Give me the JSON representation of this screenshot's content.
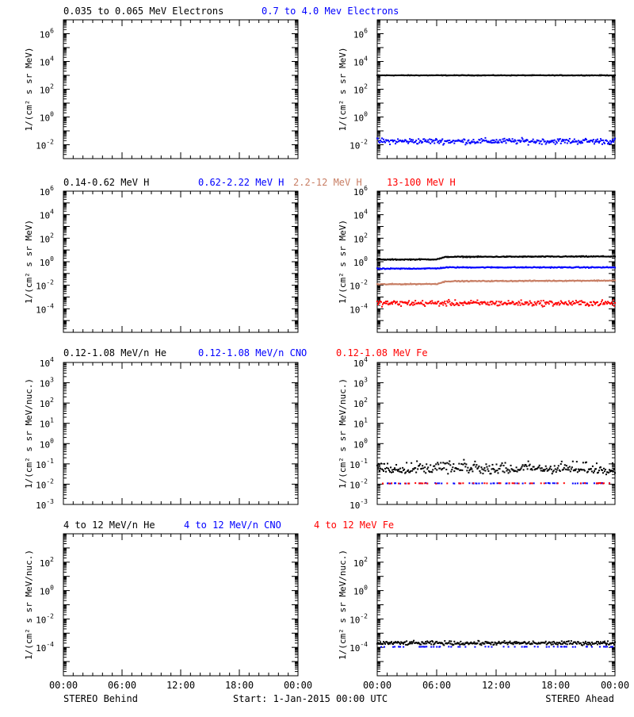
{
  "colors": {
    "black": "#000000",
    "blue": "#0000ff",
    "tan": "#c87e64",
    "red": "#ff0000"
  },
  "footer": {
    "left_label": "STEREO Behind",
    "center_label": "Start:  1-Jan-2015 00:00 UTC",
    "right_label": "STEREO Ahead"
  },
  "chart_data": [
    {
      "type": "scatter",
      "legend": [
        "0.035 to 0.065 MeV Electrons",
        "0.7 to 4.0 Mev Electrons"
      ],
      "ylabel": "1/(cm² s sr MeV)",
      "y_scale": "log",
      "y_tick_exponents": [
        -2,
        0,
        2,
        4,
        6
      ],
      "ylim": [
        0.001,
        10000000
      ],
      "x_ticks": [
        "00:00",
        "06:00",
        "12:00",
        "18:00",
        "00:00"
      ],
      "x_range_hours": [
        0,
        24
      ],
      "behind_series": [],
      "ahead_series": [
        {
          "name": "0.035 to 0.065 MeV Electrons",
          "color": "black",
          "x_hours": [
            0,
            6,
            12,
            18,
            24
          ],
          "values": [
            1000,
            1000,
            1000,
            1000,
            1000
          ],
          "scatter_decades": 0.03
        },
        {
          "name": "0.7 to 4.0 Mev Electrons",
          "color": "blue",
          "x_hours": [
            0,
            6,
            12,
            18,
            24
          ],
          "values": [
            0.018,
            0.018,
            0.018,
            0.018,
            0.018
          ],
          "scatter_decades": 0.3
        }
      ]
    },
    {
      "type": "scatter",
      "legend": [
        "0.14-0.62 MeV H",
        "0.62-2.22 MeV H",
        "2.2-12 MeV H",
        "13-100 MeV H"
      ],
      "ylabel": "1/(cm² s sr MeV)",
      "y_scale": "log",
      "y_tick_exponents": [
        -4,
        -2,
        0,
        2,
        4,
        6
      ],
      "ylim": [
        1e-06,
        1000000
      ],
      "x_ticks": [
        "00:00",
        "06:00",
        "12:00",
        "18:00",
        "00:00"
      ],
      "x_range_hours": [
        0,
        24
      ],
      "behind_series": [],
      "ahead_series": [
        {
          "name": "0.14-0.62 MeV H",
          "color": "black",
          "x_hours": [
            0,
            6,
            7,
            24
          ],
          "values": [
            1.5,
            1.6,
            2.6,
            2.8
          ],
          "scatter_decades": 0.06
        },
        {
          "name": "0.62-2.22 MeV H",
          "color": "blue",
          "x_hours": [
            0,
            6,
            7,
            24
          ],
          "values": [
            0.25,
            0.27,
            0.33,
            0.33
          ],
          "scatter_decades": 0.06
        },
        {
          "name": "2.2-12 MeV H",
          "color": "tan",
          "x_hours": [
            0,
            6,
            7,
            24
          ],
          "values": [
            0.012,
            0.013,
            0.022,
            0.025
          ],
          "scatter_decades": 0.06
        },
        {
          "name": "13-100 MeV H",
          "color": "red",
          "x_hours": [
            0,
            6,
            12,
            18,
            24
          ],
          "values": [
            0.0003,
            0.0003,
            0.0003,
            0.0003,
            0.0003
          ],
          "scatter_decades": 0.35
        }
      ]
    },
    {
      "type": "scatter",
      "legend": [
        "0.12-1.08 MeV/n He",
        "0.12-1.08 MeV/n CNO",
        "0.12-1.08 MeV Fe"
      ],
      "ylabel": "1/(cm² s sr MeV/nuc.)",
      "y_scale": "log",
      "y_tick_exponents": [
        -3,
        -2,
        -1,
        0,
        1,
        2,
        3,
        4
      ],
      "ylim": [
        0.001,
        10000
      ],
      "x_ticks": [
        "00:00",
        "06:00",
        "12:00",
        "18:00",
        "00:00"
      ],
      "x_range_hours": [
        0,
        24
      ],
      "behind_series": [],
      "ahead_series": [
        {
          "name": "0.12-1.08 MeV/n He",
          "color": "black",
          "x_hours": [
            0,
            24
          ],
          "values": [
            0.05,
            0.05
          ],
          "scatter_decades": 0.25,
          "levels": [
            0.05,
            0.1
          ]
        },
        {
          "name": "0.12-1.08 MeV/n CNO",
          "color": "blue",
          "x_hours": [
            0,
            24
          ],
          "values": [
            0.011,
            0.011
          ],
          "scatter_decades": 0.02,
          "sparse": true
        },
        {
          "name": "0.12-1.08 MeV Fe",
          "color": "red",
          "x_hours": [
            0,
            24
          ],
          "values": [
            0.011,
            0.011
          ],
          "scatter_decades": 0.02,
          "sparse": true
        }
      ]
    },
    {
      "type": "scatter",
      "legend": [
        "4 to 12 MeV/n He",
        "4 to 12 MeV/n CNO",
        "4 to 12 MeV Fe"
      ],
      "ylabel": "1/(cm² s sr MeV/nuc.)",
      "y_scale": "log",
      "y_tick_exponents": [
        -4,
        -2,
        0,
        2
      ],
      "ylim": [
        1e-06,
        10000
      ],
      "x_ticks": [
        "00:00",
        "06:00",
        "12:00",
        "18:00",
        "00:00"
      ],
      "x_range_hours": [
        0,
        24
      ],
      "behind_series": [],
      "ahead_series": [
        {
          "name": "4 to 12 MeV/n He",
          "color": "black",
          "x_hours": [
            0,
            24
          ],
          "values": [
            0.0002,
            0.0002
          ],
          "scatter_decades": 0.2
        },
        {
          "name": "4 to 12 MeV/n CNO",
          "color": "blue",
          "x_hours": [
            0,
            24
          ],
          "values": [
            0.00011,
            0.00011
          ],
          "scatter_decades": 0.02,
          "sparse": true
        },
        {
          "name": "4 to 12 MeV Fe",
          "color": "red",
          "x_hours": [
            0,
            24
          ],
          "values": [],
          "scatter_decades": 0.0
        }
      ]
    }
  ]
}
